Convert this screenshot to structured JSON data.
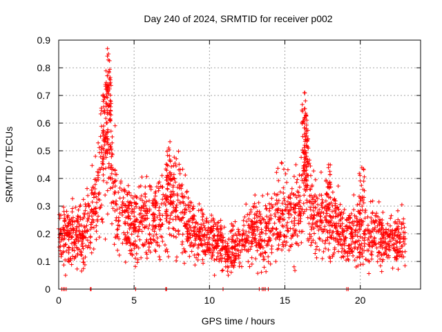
{
  "chart_data": {
    "type": "scatter",
    "title": "Day 240 of 2024, SRMTID for receiver p002",
    "xlabel": "GPS time / hours",
    "ylabel": "SRMTID / TECUs",
    "xlim": [
      0,
      24
    ],
    "ylim": [
      0,
      0.9
    ],
    "x_ticks": [
      0,
      5,
      10,
      15,
      20
    ],
    "x_tick_labels": [
      "0",
      "5",
      "10",
      "15",
      "20"
    ],
    "y_ticks": [
      0,
      0.1,
      0.2,
      0.3,
      0.4,
      0.5,
      0.6,
      0.7,
      0.8,
      0.9
    ],
    "y_tick_labels": [
      "0",
      "0.1",
      "0.2",
      "0.3",
      "0.4",
      "0.5",
      "0.6",
      "0.7",
      "0.8",
      "0.9"
    ],
    "grid": true,
    "marker": "plus",
    "series": [
      {
        "name": "SRMTID",
        "color": "#ff0000",
        "profile": [
          {
            "x": 0.0,
            "y": 0.19
          },
          {
            "x": 0.5,
            "y": 0.18
          },
          {
            "x": 1.0,
            "y": 0.19
          },
          {
            "x": 1.5,
            "y": 0.2
          },
          {
            "x": 2.0,
            "y": 0.24
          },
          {
            "x": 2.5,
            "y": 0.33
          },
          {
            "x": 3.0,
            "y": 0.45
          },
          {
            "x": 3.3,
            "y": 0.6
          },
          {
            "x": 3.6,
            "y": 0.42
          },
          {
            "x": 4.0,
            "y": 0.27
          },
          {
            "x": 4.5,
            "y": 0.24
          },
          {
            "x": 5.0,
            "y": 0.24
          },
          {
            "x": 5.5,
            "y": 0.25
          },
          {
            "x": 6.0,
            "y": 0.25
          },
          {
            "x": 6.5,
            "y": 0.26
          },
          {
            "x": 7.0,
            "y": 0.28
          },
          {
            "x": 7.5,
            "y": 0.32
          },
          {
            "x": 8.0,
            "y": 0.31
          },
          {
            "x": 8.5,
            "y": 0.26
          },
          {
            "x": 9.0,
            "y": 0.2
          },
          {
            "x": 9.5,
            "y": 0.2
          },
          {
            "x": 10.0,
            "y": 0.19
          },
          {
            "x": 10.5,
            "y": 0.18
          },
          {
            "x": 11.0,
            "y": 0.14
          },
          {
            "x": 11.5,
            "y": 0.14
          },
          {
            "x": 12.0,
            "y": 0.16
          },
          {
            "x": 12.5,
            "y": 0.2
          },
          {
            "x": 13.0,
            "y": 0.21
          },
          {
            "x": 13.5,
            "y": 0.2
          },
          {
            "x": 14.0,
            "y": 0.22
          },
          {
            "x": 14.5,
            "y": 0.28
          },
          {
            "x": 15.0,
            "y": 0.28
          },
          {
            "x": 15.5,
            "y": 0.27
          },
          {
            "x": 16.0,
            "y": 0.28
          },
          {
            "x": 16.4,
            "y": 0.4
          },
          {
            "x": 16.8,
            "y": 0.28
          },
          {
            "x": 17.5,
            "y": 0.24
          },
          {
            "x": 18.0,
            "y": 0.24
          },
          {
            "x": 18.5,
            "y": 0.22
          },
          {
            "x": 19.0,
            "y": 0.19
          },
          {
            "x": 19.5,
            "y": 0.19
          },
          {
            "x": 20.0,
            "y": 0.2
          },
          {
            "x": 20.5,
            "y": 0.19
          },
          {
            "x": 21.0,
            "y": 0.2
          },
          {
            "x": 21.5,
            "y": 0.17
          },
          {
            "x": 22.0,
            "y": 0.17
          },
          {
            "x": 22.5,
            "y": 0.18
          },
          {
            "x": 23.0,
            "y": 0.19
          }
        ],
        "peaks": [
          {
            "x": 3.3,
            "y": 0.85
          },
          {
            "x": 3.1,
            "y": 0.74
          },
          {
            "x": 16.3,
            "y": 0.71
          },
          {
            "x": 16.4,
            "y": 0.63
          },
          {
            "x": 7.3,
            "y": 0.51
          },
          {
            "x": 17.9,
            "y": 0.45
          },
          {
            "x": 20.1,
            "y": 0.44
          }
        ],
        "zero_points_x": [
          0.2,
          0.3,
          0.4,
          0.5,
          2.1,
          2.15,
          5.1,
          7.1,
          7.15,
          10.9,
          13.3,
          13.5,
          13.6,
          13.7,
          13.9,
          19.1,
          19.2
        ]
      }
    ]
  }
}
